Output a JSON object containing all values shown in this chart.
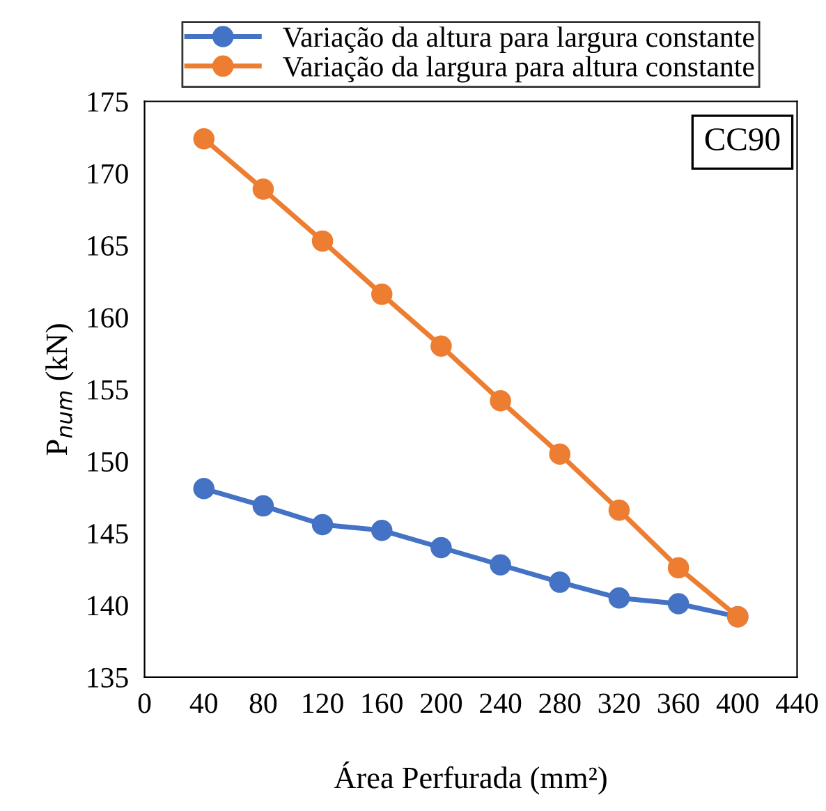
{
  "chart_data": {
    "type": "line",
    "xlabel": "Área Perfurada (mm²)",
    "ylabel": "P$_{num}$ (kN)",
    "x": [
      40,
      80,
      120,
      160,
      200,
      240,
      280,
      320,
      360,
      400
    ],
    "series": [
      {
        "name": "Variação da altura para largura constante",
        "color": "#4472c4",
        "values": [
          148.1,
          146.9,
          145.6,
          145.2,
          144.0,
          142.8,
          141.6,
          140.5,
          140.1,
          139.2
        ]
      },
      {
        "name": "Variação da largura para altura constante",
        "color": "#ed7d31",
        "values": [
          172.4,
          168.9,
          165.3,
          161.6,
          158.0,
          154.2,
          150.5,
          146.6,
          142.6,
          139.2
        ]
      }
    ],
    "xlim": [
      0,
      440
    ],
    "xticks": [
      0,
      40,
      80,
      120,
      160,
      200,
      240,
      280,
      320,
      360,
      400,
      440
    ],
    "ylim": [
      135,
      175
    ],
    "yticks": [
      135,
      140,
      145,
      150,
      155,
      160,
      165,
      170,
      175
    ],
    "annotations": [
      "CC90"
    ],
    "legend": "top",
    "marker": "circle",
    "line_style": "solid",
    "grid": false
  }
}
